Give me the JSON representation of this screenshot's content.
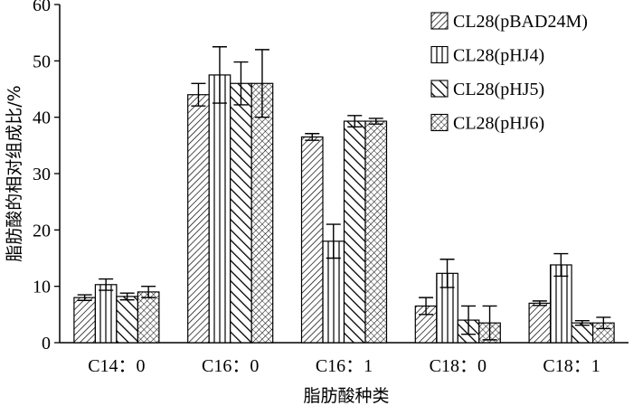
{
  "chart_data": {
    "type": "bar",
    "title": "",
    "xlabel": "脂肪酸种类",
    "ylabel": "脂肪酸的相对组成比/%",
    "categories": [
      "C14：0",
      "C16：0",
      "C16：1",
      "C18：0",
      "C18：1"
    ],
    "ylim": [
      0,
      60
    ],
    "yticks": [
      0,
      10,
      20,
      30,
      40,
      50,
      60
    ],
    "grid": false,
    "legend_position": "top-right",
    "series": [
      {
        "name": "CL28(pBAD24M)",
        "pattern": "diagonal-dense",
        "values": [
          8.0,
          44.0,
          36.5,
          6.5,
          7.0
        ],
        "errors": [
          0.5,
          2.0,
          0.6,
          1.5,
          0.4
        ]
      },
      {
        "name": "CL28(pHJ4)",
        "pattern": "vertical-lines",
        "values": [
          10.3,
          47.5,
          18.0,
          12.3,
          13.8
        ],
        "errors": [
          1.0,
          5.0,
          3.0,
          2.5,
          2.0
        ]
      },
      {
        "name": "CL28(pHJ5)",
        "pattern": "diagonal-wide",
        "values": [
          8.2,
          46.0,
          39.3,
          4.0,
          3.5
        ],
        "errors": [
          0.6,
          3.8,
          1.0,
          2.5,
          0.4
        ]
      },
      {
        "name": "CL28(pHJ6)",
        "pattern": "crosshatch",
        "values": [
          9.0,
          46.0,
          39.3,
          3.5,
          3.5
        ],
        "errors": [
          1.0,
          6.0,
          0.5,
          3.0,
          1.0
        ]
      }
    ]
  }
}
